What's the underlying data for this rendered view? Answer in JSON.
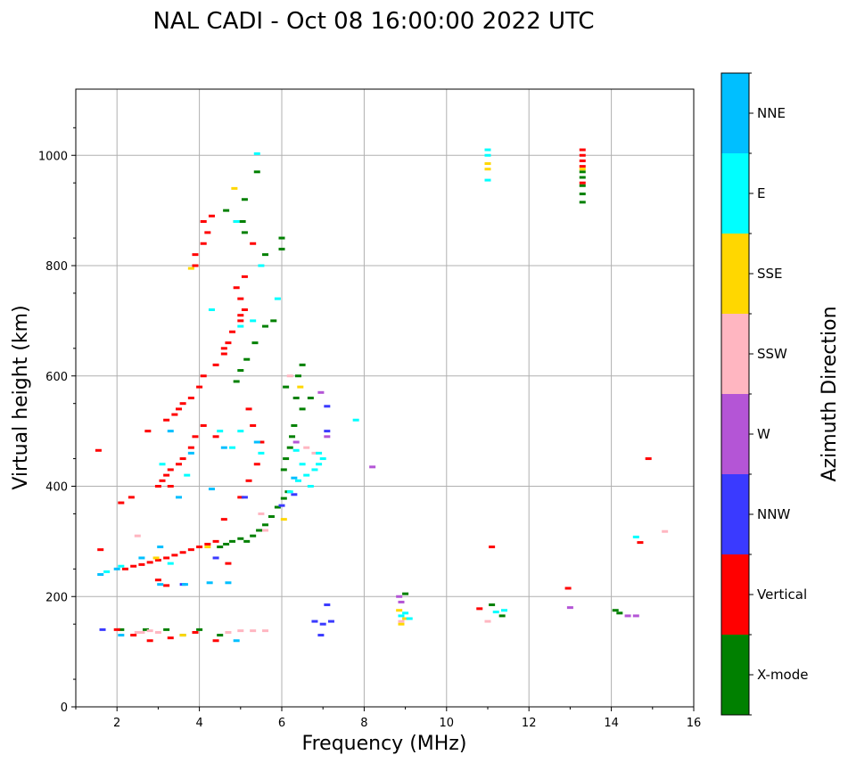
{
  "chart_data": {
    "type": "scatter",
    "title": "NAL CADI - Oct 08 16:00:00 2022 UTC",
    "xlabel": "Frequency (MHz)",
    "ylabel": "Virtual height (km)",
    "xlim": [
      1,
      16
    ],
    "ylim": [
      0,
      1120
    ],
    "xticks": [
      2,
      4,
      6,
      8,
      10,
      12,
      14,
      16
    ],
    "yticks": [
      0,
      200,
      400,
      600,
      800,
      1000
    ],
    "grid": true,
    "colorbar": {
      "label": "Azimuth Direction",
      "categories": [
        {
          "name": "X-mode",
          "color": "#008000"
        },
        {
          "name": "Vertical",
          "color": "#ff0000"
        },
        {
          "name": "NNW",
          "color": "#3a3aff"
        },
        {
          "name": "W",
          "color": "#b455d6"
        },
        {
          "name": "SSW",
          "color": "#ffb6c1"
        },
        {
          "name": "SSE",
          "color": "#ffd700"
        },
        {
          "name": "E",
          "color": "#00ffff"
        },
        {
          "name": "NNE",
          "color": "#00bfff"
        }
      ]
    },
    "series": [
      {
        "name": "X-mode",
        "points": [
          [
            5.15,
            300
          ],
          [
            5.3,
            310
          ],
          [
            5.45,
            320
          ],
          [
            5.6,
            330
          ],
          [
            5.75,
            345
          ],
          [
            5.9,
            362
          ],
          [
            6.05,
            378
          ],
          [
            6.15,
            390
          ],
          [
            4.5,
            290
          ],
          [
            4.65,
            295
          ],
          [
            4.8,
            300
          ],
          [
            5.0,
            305
          ],
          [
            4.9,
            590
          ],
          [
            5.0,
            610
          ],
          [
            5.15,
            630
          ],
          [
            5.35,
            660
          ],
          [
            5.6,
            690
          ],
          [
            5.8,
            700
          ],
          [
            6.0,
            830
          ],
          [
            6.0,
            850
          ],
          [
            5.1,
            920
          ],
          [
            5.1,
            860
          ],
          [
            5.05,
            880
          ],
          [
            5.6,
            820
          ],
          [
            6.05,
            430
          ],
          [
            6.1,
            450
          ],
          [
            6.2,
            470
          ],
          [
            6.25,
            490
          ],
          [
            6.3,
            510
          ],
          [
            6.5,
            540
          ],
          [
            6.35,
            560
          ],
          [
            6.1,
            580
          ],
          [
            6.4,
            600
          ],
          [
            6.5,
            620
          ],
          [
            5.4,
            970
          ],
          [
            4.65,
            900
          ],
          [
            4.9,
            880
          ],
          [
            2.1,
            140
          ],
          [
            2.7,
            140
          ],
          [
            3.2,
            140
          ],
          [
            3.6,
            130
          ],
          [
            4.0,
            140
          ],
          [
            4.5,
            130
          ],
          [
            9.0,
            205
          ],
          [
            11.1,
            185
          ],
          [
            11.35,
            165
          ],
          [
            14.1,
            175
          ],
          [
            14.2,
            170
          ],
          [
            13.3,
            915
          ],
          [
            13.3,
            930
          ],
          [
            13.3,
            945
          ],
          [
            13.3,
            960
          ],
          [
            13.3,
            970
          ],
          [
            6.7,
            560
          ]
        ]
      },
      {
        "name": "Vertical",
        "points": [
          [
            2.2,
            250
          ],
          [
            2.4,
            255
          ],
          [
            2.6,
            258
          ],
          [
            2.8,
            262
          ],
          [
            3.0,
            266
          ],
          [
            3.2,
            270
          ],
          [
            3.4,
            275
          ],
          [
            3.6,
            280
          ],
          [
            3.8,
            285
          ],
          [
            4.0,
            290
          ],
          [
            4.2,
            295
          ],
          [
            4.4,
            300
          ],
          [
            1.6,
            285
          ],
          [
            2.1,
            370
          ],
          [
            2.35,
            380
          ],
          [
            3.0,
            400
          ],
          [
            3.1,
            410
          ],
          [
            3.2,
            420
          ],
          [
            3.3,
            430
          ],
          [
            3.5,
            440
          ],
          [
            3.6,
            450
          ],
          [
            3.8,
            470
          ],
          [
            3.9,
            490
          ],
          [
            4.1,
            510
          ],
          [
            3.2,
            520
          ],
          [
            3.4,
            530
          ],
          [
            3.5,
            540
          ],
          [
            3.6,
            550
          ],
          [
            3.8,
            560
          ],
          [
            4.0,
            580
          ],
          [
            4.1,
            600
          ],
          [
            4.4,
            620
          ],
          [
            4.6,
            640
          ],
          [
            4.7,
            660
          ],
          [
            4.8,
            680
          ],
          [
            5.0,
            700
          ],
          [
            5.1,
            720
          ],
          [
            5.0,
            740
          ],
          [
            4.9,
            760
          ],
          [
            5.1,
            780
          ],
          [
            3.9,
            800
          ],
          [
            3.9,
            820
          ],
          [
            4.1,
            840
          ],
          [
            4.2,
            860
          ],
          [
            4.3,
            890
          ],
          [
            5.3,
            840
          ],
          [
            5.0,
            710
          ],
          [
            4.6,
            650
          ],
          [
            1.55,
            465
          ],
          [
            2.75,
            500
          ],
          [
            3.2,
            220
          ],
          [
            3.0,
            230
          ],
          [
            2.0,
            140
          ],
          [
            2.4,
            130
          ],
          [
            2.8,
            120
          ],
          [
            3.3,
            125
          ],
          [
            3.9,
            135
          ],
          [
            4.4,
            120
          ],
          [
            4.7,
            260
          ],
          [
            4.6,
            340
          ],
          [
            5.0,
            380
          ],
          [
            5.2,
            410
          ],
          [
            5.4,
            440
          ],
          [
            5.5,
            480
          ],
          [
            5.3,
            510
          ],
          [
            5.2,
            540
          ],
          [
            4.4,
            490
          ],
          [
            13.3,
            1000
          ],
          [
            13.3,
            1010
          ],
          [
            13.3,
            990
          ],
          [
            13.3,
            980
          ],
          [
            13.3,
            950
          ],
          [
            11.1,
            290
          ],
          [
            12.95,
            215
          ],
          [
            10.8,
            178
          ],
          [
            14.7,
            298
          ],
          [
            14.9,
            450
          ],
          [
            4.1,
            880
          ],
          [
            3.3,
            400
          ]
        ]
      },
      {
        "name": "NNW",
        "points": [
          [
            6.8,
            155
          ],
          [
            7.0,
            150
          ],
          [
            7.2,
            155
          ],
          [
            7.1,
            185
          ],
          [
            6.95,
            130
          ],
          [
            7.1,
            545
          ],
          [
            7.1,
            500
          ],
          [
            6.3,
            385
          ],
          [
            6.0,
            365
          ],
          [
            5.1,
            380
          ],
          [
            4.4,
            270
          ],
          [
            1.65,
            140
          ],
          [
            3.6,
            222
          ]
        ]
      },
      {
        "name": "W",
        "points": [
          [
            6.95,
            570
          ],
          [
            7.1,
            490
          ],
          [
            8.85,
            200
          ],
          [
            8.9,
            190
          ],
          [
            8.2,
            435
          ],
          [
            13.0,
            180
          ],
          [
            14.4,
            165
          ],
          [
            14.6,
            165
          ],
          [
            6.35,
            480
          ]
        ]
      },
      {
        "name": "SSW",
        "points": [
          [
            2.5,
            135
          ],
          [
            2.6,
            135
          ],
          [
            2.8,
            138
          ],
          [
            3.0,
            135
          ],
          [
            4.7,
            135
          ],
          [
            5.0,
            138
          ],
          [
            5.3,
            138
          ],
          [
            5.6,
            138
          ],
          [
            5.6,
            320
          ],
          [
            5.5,
            350
          ],
          [
            6.6,
            470
          ],
          [
            6.8,
            460
          ],
          [
            11.0,
            155
          ],
          [
            15.3,
            318
          ],
          [
            2.5,
            310
          ],
          [
            6.2,
            600
          ],
          [
            8.9,
            155
          ]
        ]
      },
      {
        "name": "SSE",
        "points": [
          [
            8.9,
            150
          ],
          [
            9.0,
            160
          ],
          [
            8.85,
            175
          ],
          [
            4.85,
            940
          ],
          [
            3.8,
            795
          ],
          [
            6.45,
            580
          ],
          [
            6.05,
            340
          ],
          [
            2.95,
            270
          ],
          [
            3.6,
            130
          ],
          [
            11.0,
            985
          ],
          [
            11.0,
            975
          ],
          [
            13.3,
            975
          ],
          [
            4.2,
            290
          ]
        ]
      },
      {
        "name": "E",
        "points": [
          [
            6.4,
            410
          ],
          [
            6.6,
            420
          ],
          [
            6.8,
            430
          ],
          [
            6.9,
            440
          ],
          [
            7.0,
            450
          ],
          [
            6.5,
            440
          ],
          [
            6.7,
            400
          ],
          [
            6.2,
            390
          ],
          [
            6.9,
            460
          ],
          [
            5.9,
            740
          ],
          [
            5.5,
            800
          ],
          [
            5.3,
            700
          ],
          [
            5.0,
            690
          ],
          [
            5.4,
            1003
          ],
          [
            6.35,
            465
          ],
          [
            3.7,
            420
          ],
          [
            2.1,
            255
          ],
          [
            1.75,
            245
          ],
          [
            3.3,
            260
          ],
          [
            9.0,
            170
          ],
          [
            9.1,
            160
          ],
          [
            8.9,
            165
          ],
          [
            11.0,
            1010
          ],
          [
            11.0,
            1000
          ],
          [
            11.0,
            955
          ],
          [
            11.2,
            172
          ],
          [
            11.4,
            175
          ],
          [
            14.6,
            308
          ],
          [
            7.8,
            520
          ],
          [
            3.1,
            440
          ],
          [
            4.5,
            500
          ],
          [
            5.0,
            500
          ],
          [
            4.8,
            470
          ],
          [
            5.5,
            460
          ],
          [
            4.3,
            720
          ],
          [
            4.9,
            880
          ]
        ]
      },
      {
        "name": "NNE",
        "points": [
          [
            3.05,
            222
          ],
          [
            3.65,
            222
          ],
          [
            4.25,
            225
          ],
          [
            4.7,
            225
          ],
          [
            3.8,
            460
          ],
          [
            4.3,
            395
          ],
          [
            3.3,
            500
          ],
          [
            3.5,
            380
          ],
          [
            1.6,
            240
          ],
          [
            2.0,
            250
          ],
          [
            2.6,
            270
          ],
          [
            3.05,
            290
          ],
          [
            4.9,
            120
          ],
          [
            4.6,
            470
          ],
          [
            5.4,
            480
          ],
          [
            6.3,
            415
          ],
          [
            2.1,
            130
          ]
        ]
      }
    ]
  }
}
